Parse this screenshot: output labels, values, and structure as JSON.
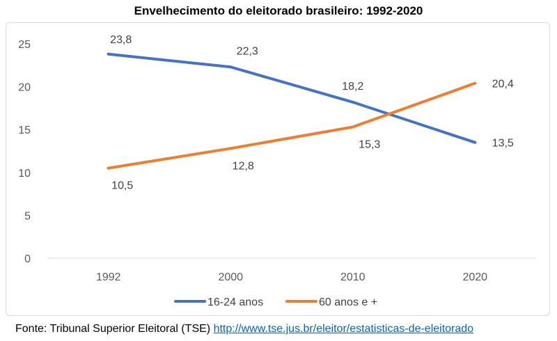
{
  "chart_data": {
    "type": "line",
    "title": "Envelhecimento do eleitorado brasileiro: 1992-2020",
    "categories": [
      "1992",
      "2000",
      "2010",
      "2020"
    ],
    "series": [
      {
        "name": "16-24 anos",
        "values": [
          23.8,
          22.3,
          18.2,
          13.5
        ],
        "labels": [
          "23,8",
          "22,3",
          "18,2",
          "13,5"
        ],
        "color": "#4472c4"
      },
      {
        "name": "60 anos e +",
        "values": [
          10.5,
          12.8,
          15.3,
          20.4
        ],
        "labels": [
          "10,5",
          "12,8",
          "15,3",
          "20,4"
        ],
        "color": "#ed7d31"
      }
    ],
    "ylim": [
      0,
      25
    ],
    "yticks": [
      0,
      5,
      10,
      15,
      20,
      25
    ],
    "grid": false,
    "legend": "bottom"
  },
  "source": {
    "prefix": "Fonte: Tribunal Superior Eleitoral (TSE)",
    "link": "http://www.tse.jus.br/eleitor/estatisticas-de-eleitorado"
  }
}
